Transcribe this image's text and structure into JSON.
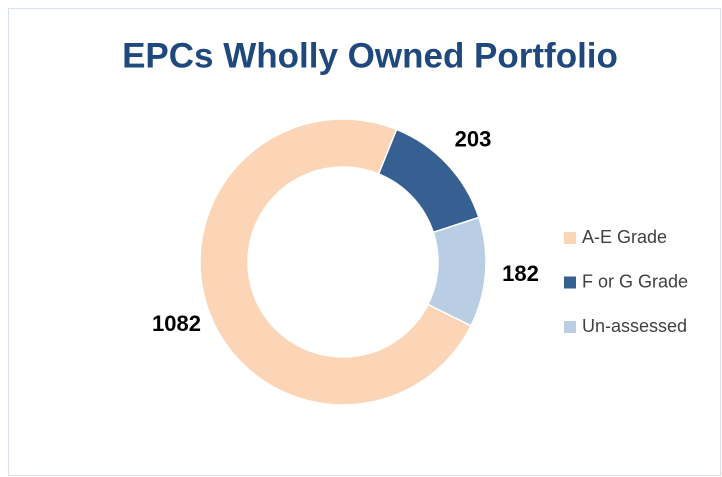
{
  "chart_data": {
    "type": "donut",
    "title": "EPCs Wholly Owned Portfolio",
    "categories": [
      "A-E Grade",
      "F or G Grade",
      "Un-assessed"
    ],
    "values": [
      1082,
      203,
      182
    ],
    "colors": [
      "#fbd5b5",
      "#366092",
      "#b9cde5"
    ],
    "legend": "right"
  }
}
